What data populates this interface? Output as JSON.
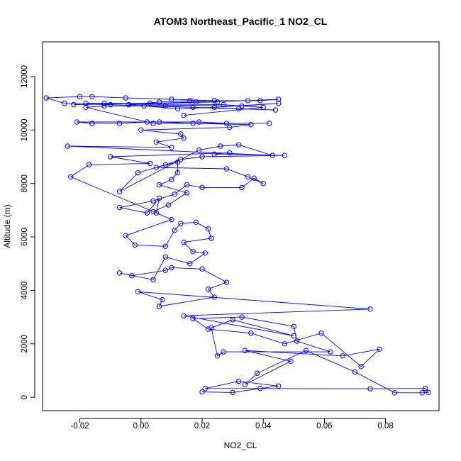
{
  "chart_data": {
    "type": "line",
    "title": "ATOM3 Northeast_Pacific_1 NO2_CL",
    "xlabel": "NO2_CL",
    "ylabel": "Altitude (m)",
    "xlim": [
      -0.0322,
      0.0975
    ],
    "ylim": [
      -500,
      13300
    ],
    "xticks": [
      -0.02,
      0.0,
      0.02,
      0.04,
      0.06,
      0.08
    ],
    "xtick_labels": [
      "-0.02",
      "0.00",
      "0.02",
      "0.04",
      "0.06",
      "0.08"
    ],
    "yticks": [
      0,
      2000,
      4000,
      6000,
      8000,
      10000,
      12000
    ],
    "ytick_labels": [
      "0",
      "2000",
      "4000",
      "6000",
      "8000",
      "10000",
      "12000"
    ],
    "grid": false,
    "color": "#0000ff",
    "marker": "open-circle",
    "series": [
      {
        "x": [
          0.02,
          0.03,
          0.039,
          0.045,
          0.032,
          0.021,
          0.075,
          0.093,
          0.094,
          0.092,
          0.083,
          0.07,
          0.054,
          0.038,
          0.034,
          0.049,
          0.034,
          0.066,
          0.078,
          0.072,
          0.059,
          0.047,
          0.036,
          0.022,
          0.017,
          0.033,
          0.05,
          0.051,
          0.062,
          0.027,
          0.025,
          0.023,
          0.03,
          0.05,
          0.014,
          0.075,
          -0.001,
          0.007,
          0.006,
          0.024,
          0.022,
          0.028,
          0.02,
          0.01,
          0.008,
          -0.003,
          -0.007,
          0.004,
          0.008,
          0.016,
          0.021,
          0.017,
          0.014,
          0.023,
          0.022,
          0.018,
          0.013,
          0.011,
          0.008,
          -0.002,
          -0.005,
          0.01,
          0.005,
          0.006,
          0.002,
          -0.007,
          0.004,
          0.011,
          0.015,
          0.02,
          0.033,
          0.037,
          0.04,
          0.035,
          0.028,
          0.005,
          0.012,
          0.012,
          0.01,
          0.006,
          0.015,
          0.009,
          0.004,
          -0.023,
          -0.017,
          0.003,
          -0.01,
          0.029,
          0.024,
          0.047,
          0.02,
          0.013,
          0.008,
          -0.001,
          -0.007,
          0.019,
          0.026,
          0.032,
          0.043,
          -0.024,
          0.01,
          0.005,
          0.014,
          0.013,
          0.0,
          0.029,
          0.036,
          0.017,
          0.006,
          -0.021,
          -0.016,
          -0.007,
          0.002,
          0.019,
          0.028,
          0.042,
          0.004,
          -0.018,
          -0.012,
          0.008,
          0.017,
          0.032,
          0.044,
          -0.025,
          -0.031,
          -0.02,
          -0.016,
          -0.005,
          0.01,
          0.024,
          0.039,
          0.045,
          0.035,
          0.018,
          0.003,
          -0.012,
          -0.022,
          0.025,
          0.016,
          0.006,
          -0.004,
          0.033,
          0.045,
          0.024,
          0.012,
          0.001,
          -0.01,
          -0.018,
          0.027,
          0.04,
          0.014
        ],
        "y": [
          200,
          180,
          330,
          420,
          600,
          330,
          320,
          330,
          180,
          170,
          170,
          950,
          1750,
          900,
          480,
          1350,
          1750,
          1550,
          1800,
          1150,
          2400,
          2000,
          2400,
          2550,
          2950,
          3000,
          2650,
          2100,
          1700,
          1700,
          1550,
          2600,
          2900,
          2300,
          3050,
          3300,
          3950,
          3650,
          3400,
          3750,
          4050,
          4300,
          4800,
          4850,
          4750,
          4550,
          4650,
          4400,
          5250,
          5000,
          5400,
          5450,
          5800,
          5950,
          6300,
          6550,
          6500,
          6250,
          5650,
          5700,
          6050,
          6650,
          6900,
          7450,
          6900,
          7100,
          7350,
          7600,
          7950,
          7850,
          7850,
          8200,
          8000,
          8250,
          8550,
          8600,
          8800,
          8400,
          8150,
          7950,
          7650,
          7200,
          6950,
          8250,
          8700,
          8750,
          9000,
          9150,
          9100,
          9050,
          9000,
          8900,
          8700,
          8400,
          7700,
          9250,
          9400,
          9450,
          9050,
          9400,
          9350,
          9550,
          9700,
          9850,
          10000,
          10100,
          10200,
          10250,
          10300,
          10300,
          10250,
          10250,
          10300,
          10300,
          10250,
          10250,
          10250,
          10850,
          10900,
          10900,
          10850,
          10800,
          10750,
          11000,
          11200,
          11250,
          11250,
          11200,
          11150,
          11100,
          11100,
          11150,
          11100,
          11050,
          11000,
          11000,
          10950,
          11050,
          11100,
          11050,
          10950,
          10900,
          11000,
          10850,
          10800,
          10900,
          10950,
          11000,
          10950,
          10850,
          10550
        ]
      }
    ]
  }
}
